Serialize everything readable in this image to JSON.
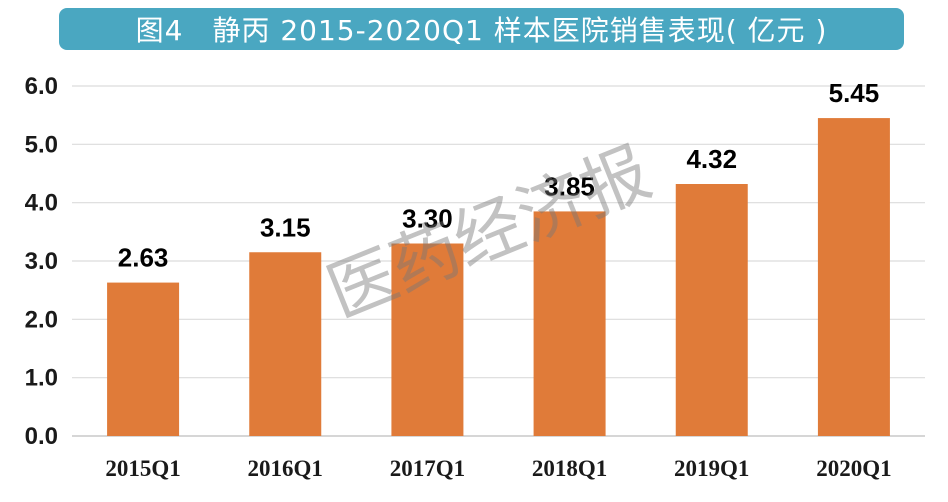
{
  "chart_data": {
    "type": "bar",
    "title": "图4　静丙 2015-2020Q1 样本医院销售表现( 亿元 )",
    "categories": [
      "2015Q1",
      "2016Q1",
      "2017Q1",
      "2018Q1",
      "2019Q1",
      "2020Q1"
    ],
    "values": [
      2.63,
      3.15,
      3.3,
      3.85,
      4.32,
      5.45
    ],
    "value_labels": [
      "2.63",
      "3.15",
      "3.30",
      "3.85",
      "4.32",
      "5.45"
    ],
    "yticks": [
      "0.0",
      "1.0",
      "2.0",
      "3.0",
      "4.0",
      "5.0",
      "6.0"
    ],
    "ylim": [
      0,
      6
    ],
    "grid": true,
    "bar_color": "#e07b39",
    "title_bg": "#4aa7c1"
  },
  "watermark": "医药经济报"
}
